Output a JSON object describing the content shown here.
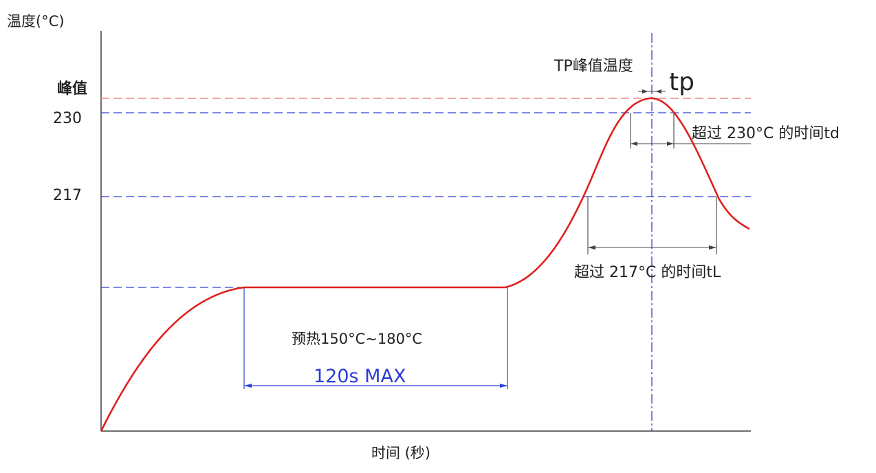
{
  "axes": {
    "y_title": "温度(°C)",
    "x_title": "时间 (秒)",
    "y_peak_label": "峰值",
    "y_tick_230": "230",
    "y_tick_217": "217"
  },
  "annotations": {
    "tp_peak_label": "TP峰值温度",
    "tp_label": "tp",
    "td_label": "超过 230°C 的时间td",
    "tl_label": "超过 217°C 的时间tL",
    "preheat_label": "预热150°C~180°C",
    "preheat_time_label": "120s MAX"
  },
  "colors": {
    "curve": "#e0201c",
    "peak_line": "#e88a80",
    "guide_blue": "#3340d8",
    "axis": "#6e6e6e",
    "dimension": "#444444",
    "text_blue": "#2a3ad9"
  }
}
